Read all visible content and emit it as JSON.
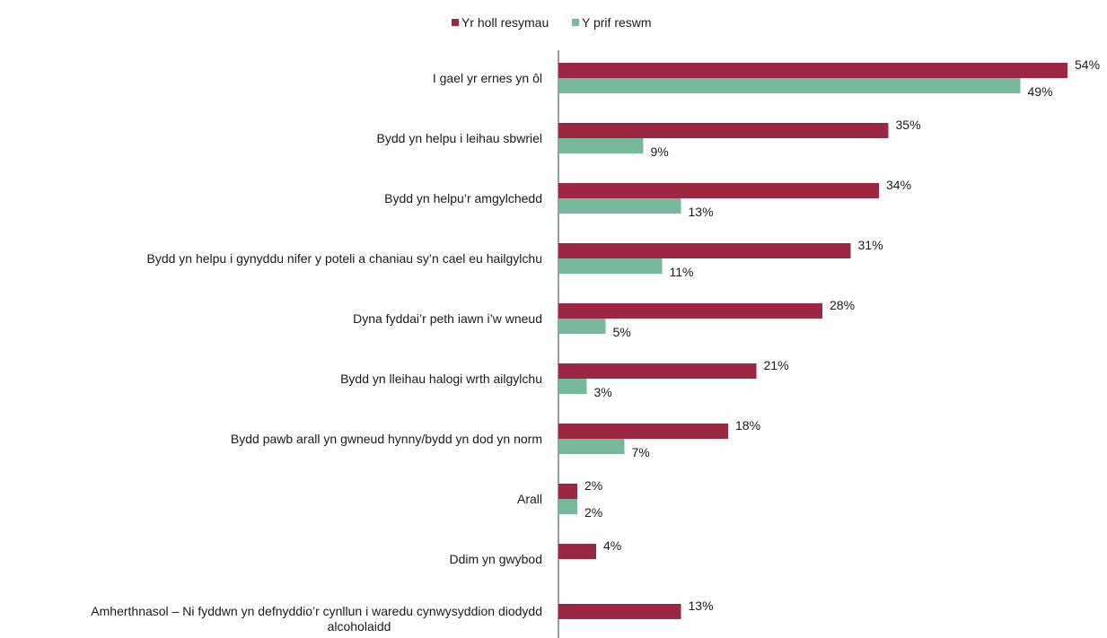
{
  "chart_data": {
    "type": "bar",
    "orientation": "horizontal",
    "title": "",
    "xlabel": "",
    "ylabel": "",
    "xlim": [
      0,
      54
    ],
    "grid": false,
    "legend_position": "top",
    "value_suffix": "%",
    "categories": [
      [
        "I gael yr ernes yn ôl"
      ],
      [
        "Bydd yn helpu i leihau sbwriel"
      ],
      [
        "Bydd yn helpu’r amgylchedd"
      ],
      [
        "Bydd yn helpu i gynyddu nifer y poteli a chaniau sy’n cael eu hailgylchu"
      ],
      [
        "Dyna fyddai’r peth iawn i’w wneud"
      ],
      [
        "Bydd yn lleihau halogi wrth ailgylchu"
      ],
      [
        "Bydd pawb arall yn gwneud hynny/bydd yn dod yn norm"
      ],
      [
        "Arall"
      ],
      [
        "Ddim yn gwybod"
      ],
      [
        "Amherthnasol – Ni fyddwn yn defnyddio’r cynllun i waredu cynwysyddion diodydd",
        "alcoholaidd"
      ]
    ],
    "series": [
      {
        "name": "Yr holl resymau",
        "color": "#9b2743",
        "values": [
          54,
          35,
          34,
          31,
          28,
          21,
          18,
          2,
          4,
          13
        ]
      },
      {
        "name": "Y prif reswm",
        "color": "#77b99b",
        "values": [
          49,
          9,
          13,
          11,
          5,
          3,
          7,
          2,
          null,
          null
        ]
      }
    ]
  }
}
